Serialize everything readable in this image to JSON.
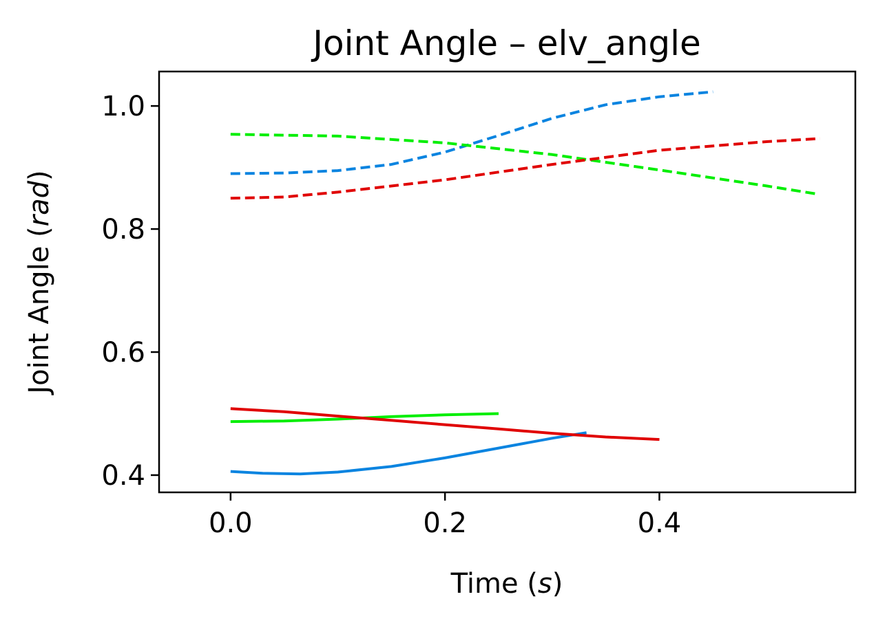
{
  "chart_data": {
    "type": "line",
    "title": "Joint Angle – elv_angle",
    "xlabel_prefix": "Time (",
    "xlabel_unit": "s",
    "xlabel_suffix": ")",
    "ylabel_prefix": "Joint Angle (",
    "ylabel_unit": "rad",
    "ylabel_suffix": ")",
    "xlim": [
      -0.0667,
      0.5828
    ],
    "ylim": [
      0.372,
      1.056
    ],
    "xticks": [
      0.0,
      0.2,
      0.4
    ],
    "xtick_labels": [
      "0.0",
      "0.2",
      "0.4"
    ],
    "yticks": [
      0.4,
      0.6,
      0.8,
      1.0
    ],
    "ytick_labels": [
      "0.4",
      "0.6",
      "0.8",
      "1.0"
    ],
    "grid": false,
    "series": [
      {
        "color": "#0a84e0",
        "style": "dashed",
        "x": [
          0.0,
          0.05,
          0.1,
          0.15,
          0.2,
          0.25,
          0.3,
          0.35,
          0.4,
          0.45
        ],
        "y": [
          0.89,
          0.891,
          0.895,
          0.905,
          0.925,
          0.952,
          0.98,
          1.002,
          1.015,
          1.023
        ]
      },
      {
        "color": "#00ee00",
        "style": "dashed",
        "x": [
          0.0,
          0.1,
          0.2,
          0.3,
          0.4,
          0.5,
          0.547
        ],
        "y": [
          0.954,
          0.951,
          0.94,
          0.921,
          0.896,
          0.87,
          0.857
        ]
      },
      {
        "color": "#e00000",
        "style": "dashed",
        "x": [
          0.0,
          0.05,
          0.1,
          0.2,
          0.3,
          0.4,
          0.5,
          0.55
        ],
        "y": [
          0.85,
          0.852,
          0.86,
          0.88,
          0.905,
          0.928,
          0.942,
          0.947
        ]
      },
      {
        "color": "#0a84e0",
        "style": "solid",
        "x": [
          0.0,
          0.03,
          0.065,
          0.1,
          0.15,
          0.2,
          0.25,
          0.3,
          0.332
        ],
        "y": [
          0.406,
          0.403,
          0.402,
          0.405,
          0.414,
          0.428,
          0.444,
          0.46,
          0.469
        ]
      },
      {
        "color": "#00ee00",
        "style": "solid",
        "x": [
          0.0,
          0.05,
          0.1,
          0.15,
          0.2,
          0.25
        ],
        "y": [
          0.487,
          0.488,
          0.491,
          0.495,
          0.498,
          0.5
        ]
      },
      {
        "color": "#e00000",
        "style": "solid",
        "x": [
          0.0,
          0.05,
          0.1,
          0.15,
          0.2,
          0.25,
          0.3,
          0.35,
          0.4
        ],
        "y": [
          0.508,
          0.503,
          0.496,
          0.489,
          0.482,
          0.475,
          0.468,
          0.462,
          0.458
        ]
      }
    ]
  }
}
